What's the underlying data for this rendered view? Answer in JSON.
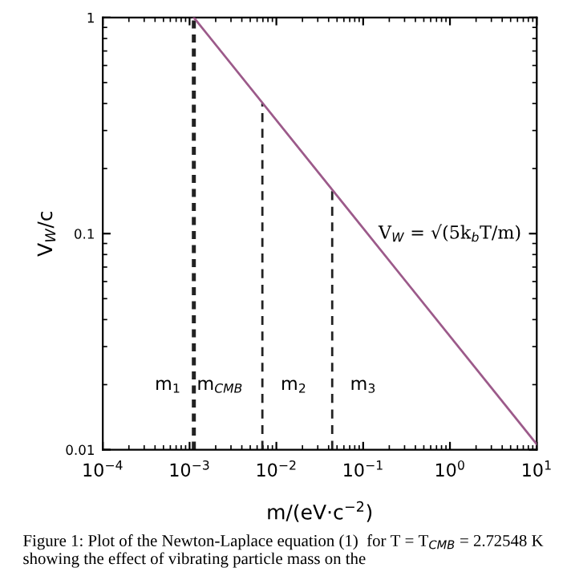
{
  "chart_data": {
    "type": "line",
    "xlabel": "m/(eV·c$^{−2}$)",
    "ylabel": "V$_{W}$/c",
    "log": "xy",
    "xlim": [
      0.0001,
      10
    ],
    "ylim": [
      0.01,
      1
    ],
    "xticks": [
      {
        "value": 0.0001,
        "label": "10$^{−4}$"
      },
      {
        "value": 0.001,
        "label": "10$^{−3}$"
      },
      {
        "value": 0.01,
        "label": "10$^{−2}$"
      },
      {
        "value": 0.1,
        "label": "10$^{−1}$"
      },
      {
        "value": 1,
        "label": "10$^{0}$"
      },
      {
        "value": 10,
        "label": "10$^{1}$"
      }
    ],
    "yticks": [
      0.01,
      0.1,
      1
    ],
    "grid": false,
    "series": [
      {
        "color": "#9c5a8a",
        "x": [
          0.00112,
          10
        ],
        "values": [
          1,
          0.0106
        ],
        "line_style": "solid"
      },
      {
        "color": "#222222",
        "x": [
          0.00112,
          0.00112
        ],
        "values": [
          0.01,
          1
        ],
        "line_style": "dotted"
      },
      {
        "color": "#222222",
        "x": [
          0.0069,
          0.0069
        ],
        "values": [
          0.01,
          0.4
        ],
        "line_style": "dashed"
      },
      {
        "color": "#222222",
        "x": [
          0.044,
          0.044
        ],
        "values": [
          0.01,
          0.16
        ],
        "line_style": "dashed"
      }
    ],
    "annotations": [
      "m$_{1}$",
      "m$_{CMB}$",
      "m$_{2}$",
      "m$_{3}$",
      "V$_{W}$ = √(5k$_{b}$T/m)",
      "Figure 1: Plot of the Newton-Laplace equation (1)  for T = T$_{CMB}$ = 2.72548 K showing the effect of vibrating particle mass on the"
    ]
  }
}
